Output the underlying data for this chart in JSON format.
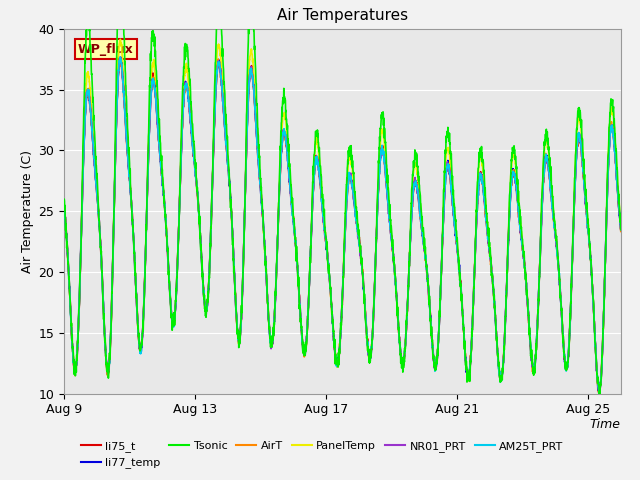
{
  "title": "Air Temperatures",
  "xlabel": "Time",
  "ylabel": "Air Temperature (C)",
  "ylim": [
    10,
    40
  ],
  "bg_color": "#e8e8e8",
  "fig_color": "#f2f2f2",
  "annotation_text": "WP_flux",
  "annotation_bg": "#ffffaa",
  "annotation_border": "#cc0000",
  "annotation_text_color": "#880000",
  "xtick_labels": [
    "Aug 9",
    "Aug 13",
    "Aug 17",
    "Aug 21",
    "Aug 25"
  ],
  "xtick_day_offsets": [
    0,
    4,
    8,
    12,
    16
  ],
  "yticks": [
    10,
    15,
    20,
    25,
    30,
    35,
    40
  ],
  "series": [
    {
      "name": "li75_t",
      "color": "#dd0000",
      "lw": 1.2,
      "zorder": 5
    },
    {
      "name": "li77_temp",
      "color": "#0000dd",
      "lw": 1.2,
      "zorder": 5
    },
    {
      "name": "Tsonic",
      "color": "#00ee00",
      "lw": 1.2,
      "zorder": 6
    },
    {
      "name": "AirT",
      "color": "#ff8800",
      "lw": 1.2,
      "zorder": 5
    },
    {
      "name": "PanelTemp",
      "color": "#eeee00",
      "lw": 1.2,
      "zorder": 4
    },
    {
      "name": "NR01_PRT",
      "color": "#9933cc",
      "lw": 1.2,
      "zorder": 5
    },
    {
      "name": "AM25T_PRT",
      "color": "#00ccee",
      "lw": 1.2,
      "zorder": 5
    }
  ],
  "total_days": 17,
  "pts_per_day": 144,
  "base_peaks": [
    34,
    38,
    36,
    35,
    37,
    38,
    32,
    30,
    27,
    31,
    27,
    29,
    28,
    28,
    29,
    31,
    32
  ],
  "base_troughs": [
    13,
    13,
    15,
    17,
    18,
    15,
    15,
    14,
    13,
    14,
    13,
    13,
    12,
    12,
    13,
    13,
    11
  ],
  "tsonic_extra": [
    5,
    8,
    4,
    3,
    4,
    7,
    3,
    2,
    2,
    3,
    2,
    3,
    2,
    2,
    2,
    2,
    2
  ]
}
